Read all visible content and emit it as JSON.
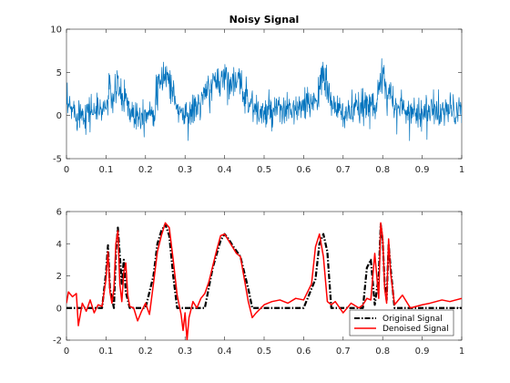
{
  "chart_data": [
    {
      "type": "line",
      "title": "Noisy Signal",
      "xlabel": "",
      "ylabel": "",
      "xlim": [
        0,
        1
      ],
      "ylim": [
        -5,
        10
      ],
      "xticks": [
        0,
        0.1,
        0.2,
        0.3,
        0.4,
        0.5,
        0.6,
        0.7,
        0.8,
        0.9,
        1
      ],
      "xtick_labels": [
        "0",
        "0.1",
        "0.2",
        "0.3",
        "0.4",
        "0.5",
        "0.6",
        "0.7",
        "0.8",
        "0.9",
        "1"
      ],
      "yticks": [
        -5,
        0,
        5,
        10
      ],
      "ytick_labels": [
        "-5",
        "0",
        "5",
        "10"
      ],
      "grid": false,
      "noise_amplitude": 1.0,
      "series": [
        {
          "color": "#0072BD",
          "x": [
            0,
            0.02,
            0.04,
            0.06,
            0.08,
            0.1,
            0.11,
            0.12,
            0.13,
            0.14,
            0.15,
            0.16,
            0.18,
            0.2,
            0.22,
            0.23,
            0.24,
            0.25,
            0.26,
            0.27,
            0.28,
            0.3,
            0.32,
            0.34,
            0.36,
            0.38,
            0.4,
            0.42,
            0.44,
            0.46,
            0.48,
            0.5,
            0.55,
            0.6,
            0.62,
            0.64,
            0.65,
            0.66,
            0.68,
            0.7,
            0.74,
            0.76,
            0.77,
            0.78,
            0.79,
            0.8,
            0.81,
            0.82,
            0.83,
            0.86,
            0.9,
            0.95,
            1.0
          ],
          "values": [
            1.0,
            0.5,
            0.3,
            0.6,
            0.5,
            1.0,
            3.0,
            1.5,
            4.0,
            1.5,
            2.5,
            0.5,
            0.2,
            0.3,
            0.8,
            2.5,
            4.0,
            5.0,
            4.2,
            2.5,
            0.8,
            0.0,
            0.5,
            1.5,
            3.0,
            4.0,
            4.5,
            4.0,
            3.5,
            2.0,
            0.5,
            0.2,
            0.5,
            0.8,
            1.5,
            3.0,
            4.5,
            3.2,
            0.5,
            0.3,
            0.6,
            1.2,
            2.0,
            1.0,
            3.0,
            4.5,
            2.0,
            3.5,
            1.0,
            0.6,
            0.4,
            0.5,
            0.6
          ]
        }
      ]
    },
    {
      "type": "line",
      "title": "",
      "xlabel": "",
      "ylabel": "",
      "xlim": [
        0,
        1
      ],
      "ylim": [
        -2,
        6
      ],
      "xticks": [
        0,
        0.1,
        0.2,
        0.3,
        0.4,
        0.5,
        0.6,
        0.7,
        0.8,
        0.9,
        1
      ],
      "xtick_labels": [
        "0",
        "0.1",
        "0.2",
        "0.3",
        "0.4",
        "0.5",
        "0.6",
        "0.7",
        "0.8",
        "0.9",
        "1"
      ],
      "yticks": [
        -2,
        0,
        2,
        4,
        6
      ],
      "ytick_labels": [
        "-2",
        "0",
        "2",
        "4",
        "6"
      ],
      "grid": false,
      "legend": "bottom-right",
      "series": [
        {
          "name": "Original Signal",
          "color": "#000000",
          "style": "dash-dot",
          "x": [
            0,
            0.09,
            0.1,
            0.105,
            0.11,
            0.12,
            0.125,
            0.13,
            0.14,
            0.145,
            0.15,
            0.16,
            0.2,
            0.22,
            0.23,
            0.24,
            0.25,
            0.26,
            0.27,
            0.28,
            0.35,
            0.37,
            0.39,
            0.4,
            0.41,
            0.42,
            0.44,
            0.46,
            0.47,
            0.6,
            0.63,
            0.64,
            0.65,
            0.66,
            0.67,
            0.7,
            0.75,
            0.76,
            0.77,
            0.78,
            0.79,
            0.795,
            0.8,
            0.805,
            0.81,
            0.815,
            0.82,
            0.83,
            1.0
          ],
          "values": [
            0,
            0,
            2.2,
            3.9,
            1.2,
            0,
            3.5,
            5.0,
            1.5,
            3.0,
            1.0,
            0,
            0,
            2.0,
            4.0,
            4.8,
            5.2,
            4.5,
            2.0,
            0,
            0,
            2.5,
            4.2,
            4.6,
            4.3,
            3.9,
            3.2,
            1.2,
            0,
            0,
            1.8,
            4.0,
            4.6,
            3.5,
            0,
            0,
            0,
            2.5,
            3.0,
            0.2,
            2.0,
            5.2,
            4.2,
            1.5,
            0.5,
            4.0,
            2.5,
            0,
            0
          ]
        },
        {
          "name": "Denoised Signal",
          "color": "#ff0000",
          "style": "solid",
          "x": [
            0,
            0.005,
            0.015,
            0.025,
            0.03,
            0.04,
            0.05,
            0.06,
            0.07,
            0.08,
            0.09,
            0.1,
            0.105,
            0.11,
            0.115,
            0.12,
            0.125,
            0.13,
            0.135,
            0.14,
            0.145,
            0.15,
            0.155,
            0.16,
            0.17,
            0.18,
            0.19,
            0.2,
            0.21,
            0.22,
            0.23,
            0.24,
            0.25,
            0.26,
            0.27,
            0.28,
            0.29,
            0.295,
            0.3,
            0.305,
            0.31,
            0.32,
            0.33,
            0.34,
            0.35,
            0.36,
            0.37,
            0.38,
            0.39,
            0.4,
            0.41,
            0.42,
            0.43,
            0.44,
            0.45,
            0.46,
            0.47,
            0.48,
            0.5,
            0.52,
            0.54,
            0.56,
            0.58,
            0.6,
            0.62,
            0.63,
            0.64,
            0.65,
            0.66,
            0.67,
            0.68,
            0.7,
            0.72,
            0.74,
            0.75,
            0.76,
            0.77,
            0.78,
            0.79,
            0.795,
            0.8,
            0.805,
            0.81,
            0.815,
            0.82,
            0.83,
            0.85,
            0.87,
            0.9,
            0.92,
            0.95,
            0.97,
            1.0
          ],
          "values": [
            0.3,
            1.0,
            0.7,
            0.9,
            -1.1,
            0.3,
            -0.2,
            0.5,
            -0.3,
            0.2,
            0.1,
            1.8,
            3.5,
            1.0,
            0.3,
            1.2,
            4.0,
            4.8,
            1.5,
            0.4,
            2.2,
            2.8,
            0.8,
            0.1,
            0.0,
            -0.8,
            -0.2,
            0.3,
            -0.4,
            1.5,
            3.5,
            4.5,
            5.3,
            5.0,
            3.0,
            0.8,
            -0.4,
            -1.4,
            -0.3,
            -2.0,
            -0.6,
            0.4,
            0.0,
            0.6,
            0.9,
            1.6,
            2.6,
            3.6,
            4.5,
            4.6,
            4.2,
            3.8,
            3.4,
            3.2,
            1.8,
            0.4,
            -0.6,
            -0.3,
            0.2,
            0.4,
            0.5,
            0.3,
            0.6,
            0.5,
            1.5,
            3.8,
            4.6,
            3.2,
            0.4,
            0.2,
            0.4,
            -0.3,
            0.3,
            0.0,
            0.2,
            0.6,
            0.5,
            3.4,
            0.6,
            5.3,
            4.4,
            1.2,
            0.3,
            4.3,
            2.2,
            0.2,
            0.8,
            0.0,
            0.2,
            0.3,
            0.5,
            0.4,
            0.6
          ]
        }
      ]
    }
  ]
}
